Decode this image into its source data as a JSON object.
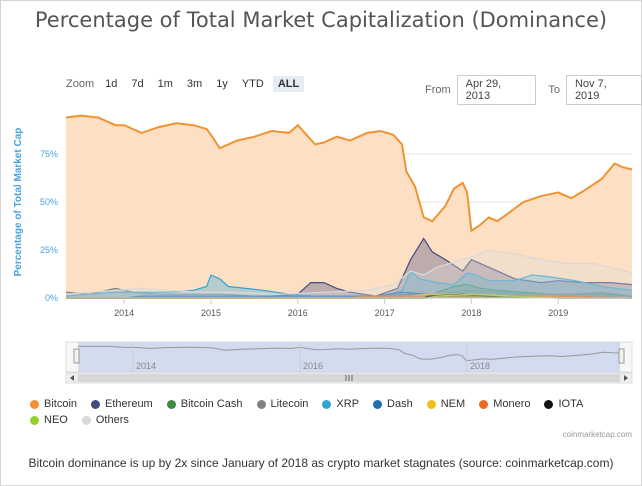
{
  "title": "Percentage of Total Market Capitalization (Dominance)",
  "zoom": {
    "label": "Zoom",
    "buttons": [
      "1d",
      "7d",
      "1m",
      "3m",
      "1y",
      "YTD",
      "ALL"
    ],
    "active": "ALL"
  },
  "range": {
    "from_label": "From",
    "from_value": "Apr 29, 2013",
    "to_label": "To",
    "to_value": "Nov 7, 2019"
  },
  "navigator_labels": [
    "2014",
    "2016",
    "2018"
  ],
  "watermark": "coinmarketcap.com",
  "caption": "Bitcoin dominance is up by 2x since January of 2018 as crypto market stagnates (source: coinmarketcap.com)",
  "colors": {
    "bitcoin": "#f09433",
    "area_fill": "#fde0c4"
  },
  "chart_data": {
    "type": "area",
    "title": "Percentage of Total Market Capitalization (Dominance)",
    "ylabel": "Percentage of Total Market Cap",
    "xlabel": "",
    "ylim": [
      0,
      100
    ],
    "yticks": [
      "0%",
      "25%",
      "50%",
      "75%"
    ],
    "x_ticks": [
      "2014",
      "2015",
      "2016",
      "2017",
      "2018",
      "2019"
    ],
    "xlim": [
      2013.33,
      2019.85
    ],
    "legend": "bottom",
    "series": [
      {
        "name": "Bitcoin",
        "color": "#f09433",
        "points": [
          [
            2013.33,
            94
          ],
          [
            2013.5,
            95
          ],
          [
            2013.7,
            94
          ],
          [
            2013.9,
            90
          ],
          [
            2014.0,
            90
          ],
          [
            2014.2,
            86
          ],
          [
            2014.4,
            89
          ],
          [
            2014.6,
            91
          ],
          [
            2014.8,
            90
          ],
          [
            2014.95,
            88
          ],
          [
            2015.0,
            85
          ],
          [
            2015.1,
            78
          ],
          [
            2015.3,
            82
          ],
          [
            2015.5,
            84
          ],
          [
            2015.7,
            87
          ],
          [
            2015.9,
            86
          ],
          [
            2016.0,
            90
          ],
          [
            2016.1,
            85
          ],
          [
            2016.2,
            80
          ],
          [
            2016.3,
            81
          ],
          [
            2016.45,
            84
          ],
          [
            2016.6,
            82
          ],
          [
            2016.8,
            86
          ],
          [
            2016.95,
            87
          ],
          [
            2017.1,
            85
          ],
          [
            2017.2,
            80
          ],
          [
            2017.25,
            66
          ],
          [
            2017.35,
            58
          ],
          [
            2017.45,
            42
          ],
          [
            2017.55,
            40
          ],
          [
            2017.7,
            48
          ],
          [
            2017.8,
            57
          ],
          [
            2017.9,
            60
          ],
          [
            2017.95,
            55
          ],
          [
            2018.0,
            35
          ],
          [
            2018.1,
            38
          ],
          [
            2018.2,
            42
          ],
          [
            2018.3,
            40
          ],
          [
            2018.45,
            45
          ],
          [
            2018.6,
            50
          ],
          [
            2018.8,
            53
          ],
          [
            2019.0,
            55
          ],
          [
            2019.15,
            52
          ],
          [
            2019.3,
            56
          ],
          [
            2019.5,
            62
          ],
          [
            2019.65,
            70
          ],
          [
            2019.75,
            68
          ],
          [
            2019.85,
            67
          ]
        ]
      },
      {
        "name": "Ethereum",
        "color": "#444b7e",
        "points": [
          [
            2013.33,
            0
          ],
          [
            2015.6,
            0
          ],
          [
            2015.7,
            1
          ],
          [
            2016.0,
            2
          ],
          [
            2016.15,
            8
          ],
          [
            2016.3,
            8
          ],
          [
            2016.45,
            5
          ],
          [
            2016.6,
            3
          ],
          [
            2016.9,
            1
          ],
          [
            2017.15,
            5
          ],
          [
            2017.3,
            20
          ],
          [
            2017.45,
            31
          ],
          [
            2017.55,
            24
          ],
          [
            2017.7,
            20
          ],
          [
            2017.9,
            14
          ],
          [
            2018.0,
            20
          ],
          [
            2018.1,
            18
          ],
          [
            2018.3,
            14
          ],
          [
            2018.5,
            10
          ],
          [
            2018.8,
            8
          ],
          [
            2019.0,
            9
          ],
          [
            2019.3,
            8
          ],
          [
            2019.6,
            8
          ],
          [
            2019.85,
            7
          ]
        ]
      },
      {
        "name": "Bitcoin Cash",
        "color": "#3a8a3f",
        "points": [
          [
            2013.33,
            0
          ],
          [
            2017.55,
            0
          ],
          [
            2017.6,
            3
          ],
          [
            2017.8,
            6
          ],
          [
            2017.95,
            7
          ],
          [
            2018.1,
            5
          ],
          [
            2018.3,
            4
          ],
          [
            2018.6,
            3
          ],
          [
            2018.9,
            2
          ],
          [
            2019.2,
            2
          ],
          [
            2019.5,
            2
          ],
          [
            2019.85,
            1
          ]
        ]
      },
      {
        "name": "Litecoin",
        "color": "#808080",
        "points": [
          [
            2013.33,
            3
          ],
          [
            2013.6,
            2
          ],
          [
            2013.9,
            5
          ],
          [
            2014.1,
            3
          ],
          [
            2014.4,
            2
          ],
          [
            2014.8,
            2
          ],
          [
            2015.1,
            2
          ],
          [
            2015.5,
            1
          ],
          [
            2015.8,
            1
          ],
          [
            2016.4,
            1
          ],
          [
            2017.0,
            1
          ],
          [
            2017.3,
            2
          ],
          [
            2017.6,
            2
          ],
          [
            2017.95,
            4
          ],
          [
            2018.3,
            3
          ],
          [
            2018.7,
            2
          ],
          [
            2019.2,
            2
          ],
          [
            2019.5,
            3
          ],
          [
            2019.85,
            1
          ]
        ]
      },
      {
        "name": "XRP",
        "color": "#2fa6d6",
        "points": [
          [
            2013.33,
            1
          ],
          [
            2013.6,
            2
          ],
          [
            2013.9,
            3
          ],
          [
            2014.2,
            3
          ],
          [
            2014.5,
            3
          ],
          [
            2014.8,
            4
          ],
          [
            2014.95,
            6
          ],
          [
            2015.0,
            12
          ],
          [
            2015.1,
            10
          ],
          [
            2015.2,
            6
          ],
          [
            2015.4,
            5
          ],
          [
            2015.6,
            4
          ],
          [
            2015.9,
            2
          ],
          [
            2016.2,
            1
          ],
          [
            2016.6,
            1
          ],
          [
            2017.0,
            1
          ],
          [
            2017.2,
            4
          ],
          [
            2017.3,
            14
          ],
          [
            2017.4,
            10
          ],
          [
            2017.6,
            8
          ],
          [
            2017.8,
            7
          ],
          [
            2017.95,
            13
          ],
          [
            2018.05,
            12
          ],
          [
            2018.2,
            9
          ],
          [
            2018.5,
            9
          ],
          [
            2018.7,
            12
          ],
          [
            2018.9,
            11
          ],
          [
            2019.2,
            9
          ],
          [
            2019.5,
            6
          ],
          [
            2019.85,
            4
          ]
        ]
      },
      {
        "name": "Dash",
        "color": "#1f6fb2",
        "points": [
          [
            2013.33,
            0
          ],
          [
            2014.0,
            0
          ],
          [
            2014.2,
            1
          ],
          [
            2015.0,
            1
          ],
          [
            2016.0,
            1
          ],
          [
            2016.9,
            1
          ],
          [
            2017.2,
            3
          ],
          [
            2017.5,
            2
          ],
          [
            2017.9,
            2
          ],
          [
            2018.3,
            1
          ],
          [
            2019.0,
            1
          ],
          [
            2019.85,
            0
          ]
        ]
      },
      {
        "name": "NEM",
        "color": "#f2c014",
        "points": [
          [
            2013.33,
            0
          ],
          [
            2017.2,
            0
          ],
          [
            2017.3,
            1
          ],
          [
            2017.5,
            2
          ],
          [
            2018.0,
            2
          ],
          [
            2018.5,
            1
          ],
          [
            2019.85,
            0
          ]
        ]
      },
      {
        "name": "Monero",
        "color": "#f26a21",
        "points": [
          [
            2013.33,
            0
          ],
          [
            2016.6,
            0
          ],
          [
            2016.8,
            1
          ],
          [
            2017.5,
            1
          ],
          [
            2018.0,
            1
          ],
          [
            2019.0,
            1
          ],
          [
            2019.85,
            0
          ]
        ]
      },
      {
        "name": "IOTA",
        "color": "#111111",
        "points": [
          [
            2013.33,
            0
          ],
          [
            2017.45,
            0
          ],
          [
            2017.5,
            1
          ],
          [
            2017.9,
            2
          ],
          [
            2018.2,
            1
          ],
          [
            2019.0,
            0
          ],
          [
            2019.85,
            0
          ]
        ]
      },
      {
        "name": "NEO",
        "color": "#97d02a",
        "points": [
          [
            2013.33,
            0
          ],
          [
            2017.5,
            0
          ],
          [
            2017.6,
            1
          ],
          [
            2018.0,
            2
          ],
          [
            2018.4,
            1
          ],
          [
            2019.0,
            0
          ],
          [
            2019.85,
            0
          ]
        ]
      },
      {
        "name": "Others",
        "color": "#d9d9d9",
        "points": [
          [
            2013.33,
            2
          ],
          [
            2013.6,
            3
          ],
          [
            2013.9,
            4
          ],
          [
            2014.2,
            5
          ],
          [
            2014.5,
            4
          ],
          [
            2014.9,
            3
          ],
          [
            2015.3,
            3
          ],
          [
            2015.8,
            2
          ],
          [
            2016.3,
            3
          ],
          [
            2016.8,
            4
          ],
          [
            2017.1,
            7
          ],
          [
            2017.3,
            14
          ],
          [
            2017.45,
            12
          ],
          [
            2017.6,
            16
          ],
          [
            2017.9,
            20
          ],
          [
            2018.05,
            22
          ],
          [
            2018.2,
            25
          ],
          [
            2018.5,
            23
          ],
          [
            2018.8,
            20
          ],
          [
            2019.1,
            18
          ],
          [
            2019.4,
            18
          ],
          [
            2019.6,
            16
          ],
          [
            2019.85,
            13
          ]
        ]
      }
    ]
  }
}
